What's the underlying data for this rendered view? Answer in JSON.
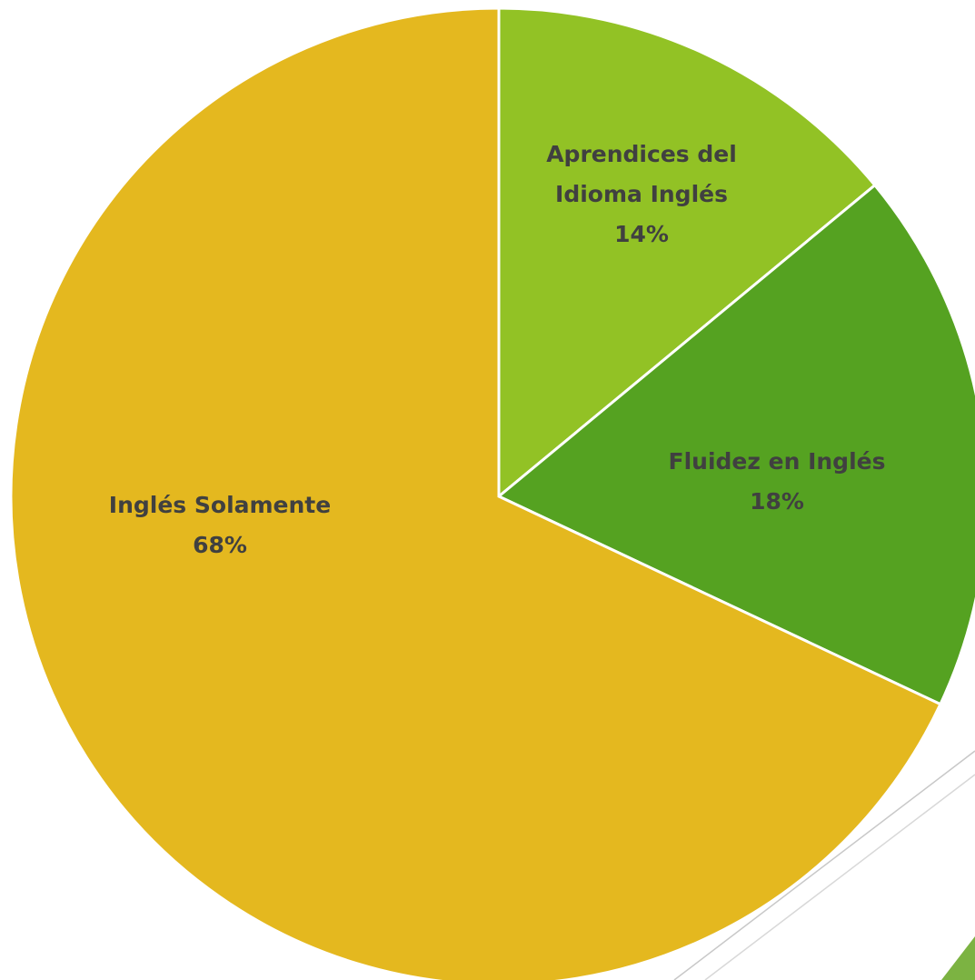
{
  "chart_data": {
    "type": "pie",
    "categories": [
      "Aprendices del Idioma Inglés",
      "Fluidez en Inglés",
      "Inglés Solamente"
    ],
    "values": [
      14,
      18,
      68
    ],
    "value_labels": [
      "14%",
      "18%",
      "68%"
    ],
    "colors": [
      "#92c225",
      "#55a221",
      "#e4b81f"
    ]
  }
}
